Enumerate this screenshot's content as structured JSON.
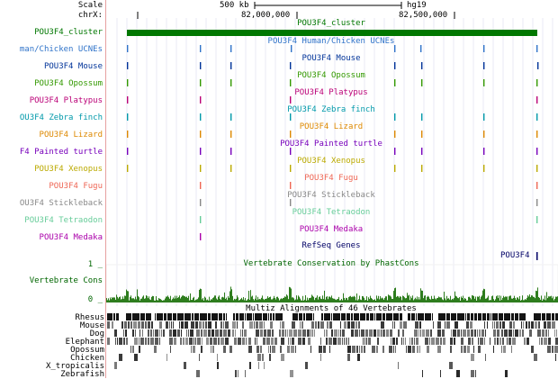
{
  "ruler": {
    "scale_label": "Scale",
    "chrom_label": "chrX:",
    "scale_bar_text": "500 kb",
    "assembly": "hg19",
    "positions": [
      "82,000,000",
      "82,500,000"
    ]
  },
  "tracks": [
    {
      "id": "cluster",
      "label": "POU3F4_cluster",
      "center": "POU3F4_cluster",
      "color": "#007700"
    },
    {
      "id": "human-chicken",
      "label": "man/Chicken UCNEs",
      "center": "POU3F4 Human/Chicken UCNEs",
      "color": "#2f73c9"
    },
    {
      "id": "mouse",
      "label": "POU3F4 Mouse",
      "center": "POU3F4 Mouse",
      "color": "#003399"
    },
    {
      "id": "opossum",
      "label": "POU3F4 Opossum",
      "center": "POU3F4 Opossum",
      "color": "#339900"
    },
    {
      "id": "platypus",
      "label": "POU3F4 Platypus",
      "center": "POU3F4 Platypus",
      "color": "#bb0077"
    },
    {
      "id": "zebra-finch",
      "label": "OU3F4 Zebra finch",
      "center": "POU3F4 Zebra finch",
      "color": "#0099aa"
    },
    {
      "id": "lizard",
      "label": "POU3F4 Lizard",
      "center": "POU3F4 Lizard",
      "color": "#dd8800"
    },
    {
      "id": "painted-turtle",
      "label": "F4 Painted turtle",
      "center": "POU3F4 Painted turtle",
      "color": "#7700bb"
    },
    {
      "id": "xenopus",
      "label": "POU3F4 Xenopus",
      "center": "POU3F4 Xenopus",
      "color": "#bbaa00"
    },
    {
      "id": "fugu",
      "label": "POU3F4 Fugu",
      "center": "POU3F4 Fugu",
      "color": "#ee6655"
    },
    {
      "id": "stickleback",
      "label": "OU3F4 Stickleback",
      "center": "POU3F4 Stickleback",
      "color": "#888888"
    },
    {
      "id": "tetraodon",
      "label": "POU3F4 Tetraodon",
      "center": "POU3F4 Tetraodon",
      "color": "#66cc99"
    },
    {
      "id": "medaka",
      "label": "POU3F4 Medaka",
      "center": "POU3F4 Medaka",
      "color": "#aa00aa"
    }
  ],
  "refseq": {
    "center": "RefSeq Genes",
    "gene": "POU3F4",
    "color": "#000066"
  },
  "conservation": {
    "center": "Vertebrate Conservation by PhastCons",
    "label": "Vertebrate Cons",
    "ymax": "1 _",
    "ymin": "0 _",
    "color": "#006600"
  },
  "multiz": {
    "title": "Multiz Alignments of 46 Vertebrates",
    "species": [
      "Rhesus",
      "Mouse",
      "Dog",
      "Elephant",
      "Opossum",
      "Chicken",
      "X_tropicalis",
      "Zebrafish"
    ]
  }
}
